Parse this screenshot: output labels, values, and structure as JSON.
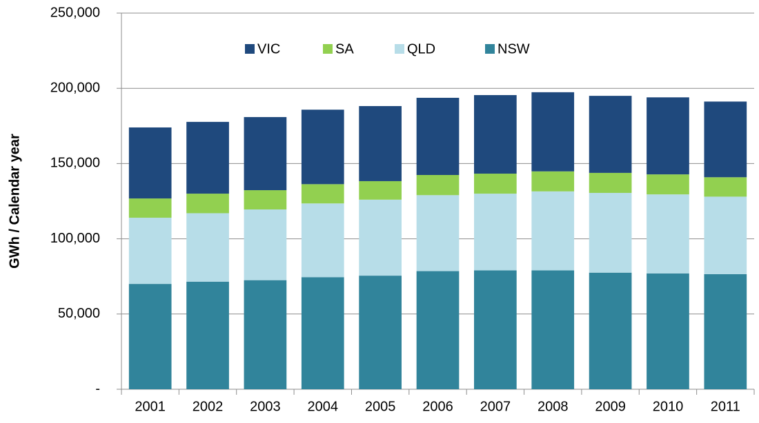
{
  "chart_data": {
    "type": "stacked_bar",
    "y_label": "GWh / Calendar year",
    "categories": [
      "2001",
      "2002",
      "2003",
      "2004",
      "2005",
      "2006",
      "2007",
      "2008",
      "2009",
      "2010",
      "2011"
    ],
    "series": [
      {
        "name": "NSW",
        "color": "#31849b",
        "values": [
          70000,
          71500,
          72500,
          74500,
          75500,
          78500,
          79000,
          79000,
          77500,
          77000,
          76500
        ]
      },
      {
        "name": "QLD",
        "color": "#b7dde8",
        "values": [
          44000,
          45500,
          47000,
          49000,
          50500,
          50500,
          51000,
          52500,
          53000,
          52500,
          51500
        ]
      },
      {
        "name": "SA",
        "color": "#92d050",
        "values": [
          12800,
          13000,
          12800,
          12800,
          12300,
          13400,
          13300,
          13300,
          13300,
          13300,
          12900
        ]
      },
      {
        "name": "VIC",
        "color": "#1f497d",
        "values": [
          47200,
          47700,
          48600,
          49500,
          49900,
          51300,
          52200,
          52600,
          51200,
          51200,
          50300
        ]
      }
    ],
    "ylim": [
      0,
      250000
    ],
    "yticks": [
      {
        "value": 0,
        "label": "-"
      },
      {
        "value": 50000,
        "label": "50,000"
      },
      {
        "value": 100000,
        "label": "100,000"
      },
      {
        "value": 150000,
        "label": "150,000"
      },
      {
        "value": 200000,
        "label": "200,000"
      },
      {
        "value": 250000,
        "label": "250,000"
      }
    ],
    "grid": true
  }
}
